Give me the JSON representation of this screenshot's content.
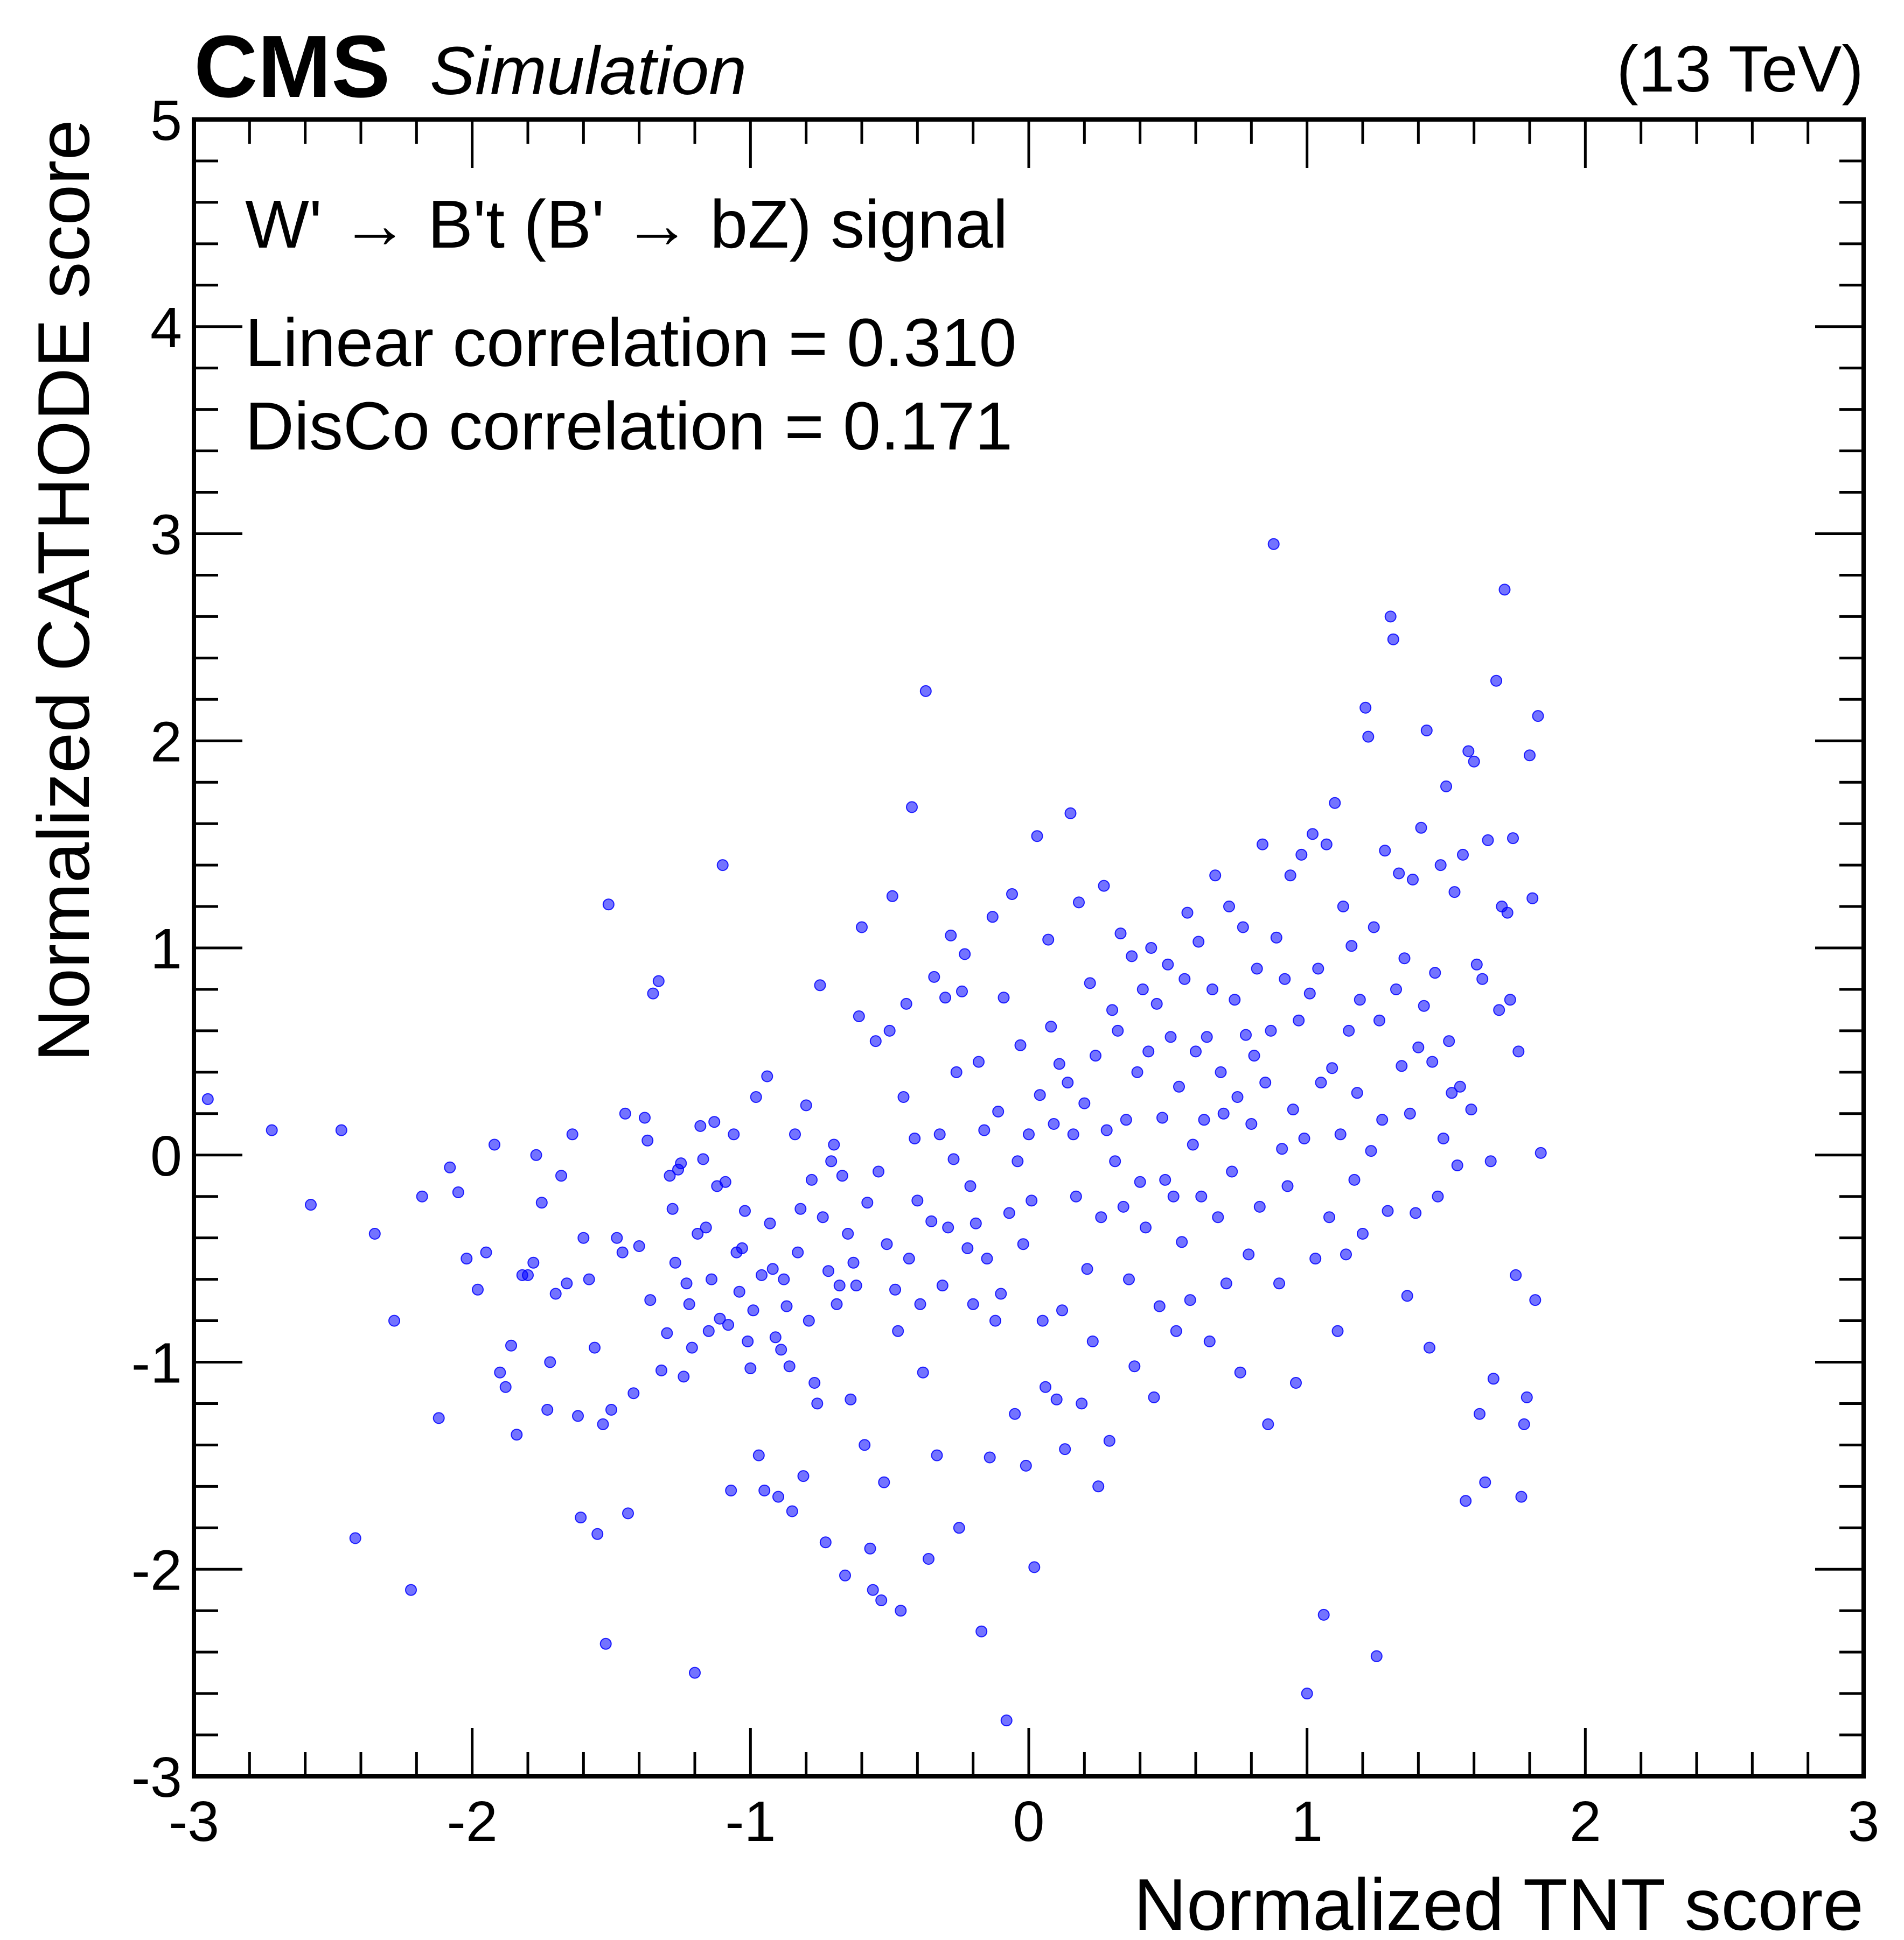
{
  "header": {
    "experiment": "CMS",
    "extra_text": "Simulation",
    "energy_label": "(13 TeV)"
  },
  "annotations": {
    "signal_label": "W' → B't (B' → bZ) signal",
    "linear_correlation": "Linear correlation = 0.310",
    "disco_correlation": "DisCo correlation = 0.171"
  },
  "colors": {
    "marker": "#0000ff",
    "axis": "#000000"
  },
  "chart_data": {
    "type": "scatter",
    "title": "",
    "xlabel": "Normalized TNT score",
    "ylabel": "Normalized CATHODE score",
    "xlim": [
      -3,
      3
    ],
    "ylim": [
      -3,
      5
    ],
    "x_ticks": [
      -3,
      -2,
      -1,
      0,
      1,
      2,
      3
    ],
    "x_tick_labels": [
      "-3",
      "-2",
      "-1",
      "0",
      "1",
      "2",
      "3"
    ],
    "y_ticks": [
      -3,
      -2,
      -1,
      0,
      1,
      2,
      3,
      4,
      5
    ],
    "y_tick_labels": [
      "-3",
      "-2",
      "-1",
      "0",
      "1",
      "2",
      "3",
      "4",
      "5"
    ],
    "grid": false,
    "marker_alpha": 0.55,
    "points": [
      [
        -2.95,
        0.27
      ],
      [
        -2.72,
        0.12
      ],
      [
        -2.58,
        -0.24
      ],
      [
        -2.47,
        0.12
      ],
      [
        -2.42,
        -1.85
      ],
      [
        -2.35,
        -0.38
      ],
      [
        -2.28,
        -0.8
      ],
      [
        -2.22,
        -2.1
      ],
      [
        -2.18,
        -0.2
      ],
      [
        -2.12,
        -1.27
      ],
      [
        -2.08,
        -0.06
      ],
      [
        -2.05,
        -0.18
      ],
      [
        -2.02,
        -0.5
      ],
      [
        -1.98,
        -0.65
      ],
      [
        -1.95,
        -0.47
      ],
      [
        -1.92,
        0.05
      ],
      [
        -1.9,
        -1.05
      ],
      [
        -1.88,
        -1.12
      ],
      [
        -1.86,
        -0.92
      ],
      [
        -1.84,
        -1.35
      ],
      [
        -1.82,
        -0.58
      ],
      [
        -1.8,
        -0.58
      ],
      [
        -1.78,
        -0.52
      ],
      [
        -1.77,
        0.0
      ],
      [
        -1.75,
        -0.23
      ],
      [
        -1.73,
        -1.23
      ],
      [
        -1.72,
        -1.0
      ],
      [
        -1.7,
        -0.67
      ],
      [
        -1.68,
        -0.1
      ],
      [
        -1.66,
        -0.62
      ],
      [
        -1.64,
        0.1
      ],
      [
        -1.62,
        -1.26
      ],
      [
        -1.61,
        -1.75
      ],
      [
        -1.6,
        -0.4
      ],
      [
        -1.58,
        -0.6
      ],
      [
        -1.56,
        -0.93
      ],
      [
        -1.55,
        -1.83
      ],
      [
        -1.53,
        -1.3
      ],
      [
        -1.52,
        -2.36
      ],
      [
        -1.51,
        1.21
      ],
      [
        -1.5,
        -1.23
      ],
      [
        -1.48,
        -0.4
      ],
      [
        -1.46,
        -0.47
      ],
      [
        -1.45,
        0.2
      ],
      [
        -1.44,
        -1.73
      ],
      [
        -1.42,
        -1.15
      ],
      [
        -1.4,
        -0.44
      ],
      [
        -1.38,
        0.18
      ],
      [
        -1.37,
        0.07
      ],
      [
        -1.36,
        -0.7
      ],
      [
        -1.35,
        0.78
      ],
      [
        -1.33,
        0.84
      ],
      [
        -1.32,
        -1.04
      ],
      [
        -1.3,
        -0.86
      ],
      [
        -1.29,
        -0.1
      ],
      [
        -1.28,
        -0.26
      ],
      [
        -1.27,
        -0.52
      ],
      [
        -1.26,
        -0.07
      ],
      [
        -1.25,
        -0.04
      ],
      [
        -1.24,
        -1.07
      ],
      [
        -1.23,
        -0.62
      ],
      [
        -1.22,
        -0.72
      ],
      [
        -1.21,
        -0.93
      ],
      [
        -1.2,
        -2.5
      ],
      [
        -1.19,
        -0.38
      ],
      [
        -1.18,
        0.14
      ],
      [
        -1.17,
        -0.02
      ],
      [
        -1.16,
        -0.35
      ],
      [
        -1.15,
        -0.85
      ],
      [
        -1.14,
        -0.6
      ],
      [
        -1.13,
        0.16
      ],
      [
        -1.12,
        -0.15
      ],
      [
        -1.11,
        -0.79
      ],
      [
        -1.1,
        1.4
      ],
      [
        -1.09,
        -0.13
      ],
      [
        -1.08,
        -0.82
      ],
      [
        -1.07,
        -1.62
      ],
      [
        -1.06,
        0.1
      ],
      [
        -1.05,
        -0.47
      ],
      [
        -1.04,
        -0.66
      ],
      [
        -1.03,
        -0.45
      ],
      [
        -1.02,
        -0.27
      ],
      [
        -1.01,
        -0.9
      ],
      [
        -1.0,
        -1.03
      ],
      [
        -0.99,
        -0.75
      ],
      [
        -0.98,
        0.28
      ],
      [
        -0.97,
        -1.45
      ],
      [
        -0.96,
        -0.58
      ],
      [
        -0.95,
        -1.62
      ],
      [
        -0.94,
        0.38
      ],
      [
        -0.93,
        -0.33
      ],
      [
        -0.92,
        -0.55
      ],
      [
        -0.91,
        -0.88
      ],
      [
        -0.9,
        -1.65
      ],
      [
        -0.89,
        -0.94
      ],
      [
        -0.88,
        -0.6
      ],
      [
        -0.87,
        -0.73
      ],
      [
        -0.86,
        -1.02
      ],
      [
        -0.85,
        -1.72
      ],
      [
        -0.84,
        0.1
      ],
      [
        -0.83,
        -0.47
      ],
      [
        -0.82,
        -0.26
      ],
      [
        -0.81,
        -1.55
      ],
      [
        -0.8,
        0.24
      ],
      [
        -0.79,
        -0.8
      ],
      [
        -0.78,
        -0.12
      ],
      [
        -0.77,
        -1.1
      ],
      [
        -0.76,
        -1.2
      ],
      [
        -0.75,
        0.82
      ],
      [
        -0.74,
        -0.3
      ],
      [
        -0.73,
        -1.87
      ],
      [
        -0.72,
        -0.56
      ],
      [
        -0.71,
        -0.03
      ],
      [
        -0.7,
        0.05
      ],
      [
        -0.69,
        -0.72
      ],
      [
        -0.68,
        -0.63
      ],
      [
        -0.67,
        -0.1
      ],
      [
        -0.66,
        -2.03
      ],
      [
        -0.65,
        -0.38
      ],
      [
        -0.64,
        -1.18
      ],
      [
        -0.63,
        -0.52
      ],
      [
        -0.62,
        -0.63
      ],
      [
        -0.61,
        0.67
      ],
      [
        -0.6,
        1.1
      ],
      [
        -0.59,
        -1.4
      ],
      [
        -0.58,
        -0.23
      ],
      [
        -0.57,
        -1.9
      ],
      [
        -0.56,
        -2.1
      ],
      [
        -0.55,
        0.55
      ],
      [
        -0.54,
        -0.08
      ],
      [
        -0.53,
        -2.15
      ],
      [
        -0.52,
        -1.58
      ],
      [
        -0.51,
        -0.43
      ],
      [
        -0.5,
        0.6
      ],
      [
        -0.49,
        1.25
      ],
      [
        -0.48,
        -0.65
      ],
      [
        -0.47,
        -0.85
      ],
      [
        -0.46,
        -2.2
      ],
      [
        -0.45,
        0.28
      ],
      [
        -0.44,
        0.73
      ],
      [
        -0.43,
        -0.5
      ],
      [
        -0.42,
        1.68
      ],
      [
        -0.41,
        0.08
      ],
      [
        -0.4,
        -0.22
      ],
      [
        -0.39,
        -0.72
      ],
      [
        -0.38,
        -1.05
      ],
      [
        -0.37,
        2.24
      ],
      [
        -0.36,
        -1.95
      ],
      [
        -0.35,
        -0.32
      ],
      [
        -0.34,
        0.86
      ],
      [
        -0.33,
        -1.45
      ],
      [
        -0.32,
        0.1
      ],
      [
        -0.31,
        -0.63
      ],
      [
        -0.3,
        0.76
      ],
      [
        -0.29,
        -0.35
      ],
      [
        -0.28,
        1.06
      ],
      [
        -0.27,
        -0.02
      ],
      [
        -0.26,
        0.4
      ],
      [
        -0.25,
        -1.8
      ],
      [
        -0.24,
        0.79
      ],
      [
        -0.23,
        0.97
      ],
      [
        -0.22,
        -0.45
      ],
      [
        -0.21,
        -0.15
      ],
      [
        -0.2,
        -0.72
      ],
      [
        -0.19,
        -0.33
      ],
      [
        -0.18,
        0.45
      ],
      [
        -0.17,
        -2.3
      ],
      [
        -0.16,
        0.12
      ],
      [
        -0.15,
        -0.5
      ],
      [
        -0.14,
        -1.46
      ],
      [
        -0.13,
        1.15
      ],
      [
        -0.12,
        -0.8
      ],
      [
        -0.11,
        0.21
      ],
      [
        -0.1,
        -0.67
      ],
      [
        -0.09,
        0.76
      ],
      [
        -0.08,
        -2.73
      ],
      [
        -0.07,
        -0.28
      ],
      [
        -0.06,
        1.26
      ],
      [
        -0.05,
        -1.25
      ],
      [
        -0.04,
        -0.03
      ],
      [
        -0.03,
        0.53
      ],
      [
        -0.02,
        -0.43
      ],
      [
        -0.01,
        -1.5
      ],
      [
        0.0,
        0.1
      ],
      [
        0.01,
        -0.22
      ],
      [
        0.02,
        -1.99
      ],
      [
        0.03,
        1.54
      ],
      [
        0.04,
        0.29
      ],
      [
        0.05,
        -0.8
      ],
      [
        0.06,
        -1.12
      ],
      [
        0.07,
        1.04
      ],
      [
        0.08,
        0.62
      ],
      [
        0.09,
        0.15
      ],
      [
        0.1,
        -1.18
      ],
      [
        0.11,
        0.44
      ],
      [
        0.12,
        -0.75
      ],
      [
        0.13,
        -1.42
      ],
      [
        0.14,
        0.35
      ],
      [
        0.15,
        1.65
      ],
      [
        0.16,
        0.1
      ],
      [
        0.17,
        -0.2
      ],
      [
        0.18,
        1.22
      ],
      [
        0.19,
        -1.2
      ],
      [
        0.2,
        0.25
      ],
      [
        0.21,
        -0.55
      ],
      [
        0.22,
        0.83
      ],
      [
        0.23,
        -0.9
      ],
      [
        0.24,
        0.48
      ],
      [
        0.25,
        -1.6
      ],
      [
        0.26,
        -0.3
      ],
      [
        0.27,
        1.3
      ],
      [
        0.28,
        0.12
      ],
      [
        0.29,
        -1.38
      ],
      [
        0.3,
        0.7
      ],
      [
        0.31,
        -0.03
      ],
      [
        0.32,
        0.6
      ],
      [
        0.33,
        1.07
      ],
      [
        0.34,
        -0.25
      ],
      [
        0.35,
        0.17
      ],
      [
        0.36,
        -0.6
      ],
      [
        0.37,
        0.96
      ],
      [
        0.38,
        -1.02
      ],
      [
        0.39,
        0.4
      ],
      [
        0.4,
        -0.13
      ],
      [
        0.41,
        0.8
      ],
      [
        0.42,
        -0.35
      ],
      [
        0.43,
        0.5
      ],
      [
        0.44,
        1.0
      ],
      [
        0.45,
        -1.17
      ],
      [
        0.46,
        0.73
      ],
      [
        0.47,
        -0.73
      ],
      [
        0.48,
        0.18
      ],
      [
        0.49,
        -0.12
      ],
      [
        0.5,
        0.92
      ],
      [
        0.51,
        0.57
      ],
      [
        0.52,
        -0.2
      ],
      [
        0.53,
        -0.85
      ],
      [
        0.54,
        0.33
      ],
      [
        0.55,
        -0.42
      ],
      [
        0.56,
        0.85
      ],
      [
        0.57,
        1.17
      ],
      [
        0.58,
        -0.7
      ],
      [
        0.59,
        0.05
      ],
      [
        0.6,
        0.5
      ],
      [
        0.61,
        1.03
      ],
      [
        0.62,
        -0.2
      ],
      [
        0.63,
        0.17
      ],
      [
        0.64,
        0.57
      ],
      [
        0.65,
        -0.9
      ],
      [
        0.66,
        0.8
      ],
      [
        0.67,
        1.35
      ],
      [
        0.68,
        -0.3
      ],
      [
        0.69,
        0.4
      ],
      [
        0.7,
        0.2
      ],
      [
        0.71,
        -0.62
      ],
      [
        0.72,
        1.2
      ],
      [
        0.73,
        -0.08
      ],
      [
        0.74,
        0.75
      ],
      [
        0.75,
        0.28
      ],
      [
        0.76,
        -1.05
      ],
      [
        0.77,
        1.1
      ],
      [
        0.78,
        0.58
      ],
      [
        0.79,
        -0.48
      ],
      [
        0.8,
        0.15
      ],
      [
        0.81,
        0.48
      ],
      [
        0.82,
        0.9
      ],
      [
        0.83,
        -0.25
      ],
      [
        0.84,
        1.5
      ],
      [
        0.85,
        0.35
      ],
      [
        0.86,
        -1.3
      ],
      [
        0.87,
        0.6
      ],
      [
        0.88,
        2.95
      ],
      [
        0.89,
        1.05
      ],
      [
        0.9,
        -0.62
      ],
      [
        0.91,
        0.03
      ],
      [
        0.92,
        0.85
      ],
      [
        0.93,
        -0.15
      ],
      [
        0.94,
        1.35
      ],
      [
        0.95,
        0.22
      ],
      [
        0.96,
        -1.1
      ],
      [
        0.97,
        0.65
      ],
      [
        0.98,
        1.45
      ],
      [
        0.99,
        0.08
      ],
      [
        1.0,
        -2.6
      ],
      [
        1.01,
        0.78
      ],
      [
        1.02,
        1.55
      ],
      [
        1.03,
        -0.5
      ],
      [
        1.04,
        0.9
      ],
      [
        1.05,
        0.35
      ],
      [
        1.06,
        -2.22
      ],
      [
        1.07,
        1.5
      ],
      [
        1.08,
        -0.3
      ],
      [
        1.09,
        0.42
      ],
      [
        1.1,
        1.7
      ],
      [
        1.11,
        -0.85
      ],
      [
        1.12,
        0.1
      ],
      [
        1.13,
        1.2
      ],
      [
        1.14,
        -0.48
      ],
      [
        1.15,
        0.6
      ],
      [
        1.16,
        1.01
      ],
      [
        1.17,
        -0.12
      ],
      [
        1.18,
        0.3
      ],
      [
        1.19,
        0.75
      ],
      [
        1.2,
        -0.38
      ],
      [
        1.21,
        2.16
      ],
      [
        1.22,
        2.02
      ],
      [
        1.23,
        0.02
      ],
      [
        1.24,
        1.1
      ],
      [
        1.25,
        -2.42
      ],
      [
        1.26,
        0.65
      ],
      [
        1.27,
        0.17
      ],
      [
        1.28,
        1.47
      ],
      [
        1.29,
        -0.27
      ],
      [
        1.3,
        2.6
      ],
      [
        1.31,
        2.49
      ],
      [
        1.32,
        0.8
      ],
      [
        1.33,
        1.36
      ],
      [
        1.34,
        0.43
      ],
      [
        1.35,
        0.95
      ],
      [
        1.36,
        -0.68
      ],
      [
        1.37,
        0.2
      ],
      [
        1.38,
        1.33
      ],
      [
        1.39,
        -0.28
      ],
      [
        1.4,
        0.52
      ],
      [
        1.41,
        1.58
      ],
      [
        1.42,
        0.72
      ],
      [
        1.43,
        2.05
      ],
      [
        1.44,
        -0.93
      ],
      [
        1.45,
        0.45
      ],
      [
        1.46,
        0.88
      ],
      [
        1.47,
        -0.2
      ],
      [
        1.48,
        1.4
      ],
      [
        1.49,
        0.08
      ],
      [
        1.5,
        1.78
      ],
      [
        1.51,
        0.55
      ],
      [
        1.52,
        0.3
      ],
      [
        1.53,
        1.27
      ],
      [
        1.54,
        -0.05
      ],
      [
        1.55,
        0.33
      ],
      [
        1.56,
        1.45
      ],
      [
        1.57,
        -1.67
      ],
      [
        1.58,
        1.95
      ],
      [
        1.59,
        0.22
      ],
      [
        1.6,
        1.9
      ],
      [
        1.61,
        0.92
      ],
      [
        1.62,
        -1.25
      ],
      [
        1.63,
        0.85
      ],
      [
        1.64,
        -1.58
      ],
      [
        1.65,
        1.52
      ],
      [
        1.66,
        -0.03
      ],
      [
        1.67,
        -1.08
      ],
      [
        1.68,
        2.29
      ],
      [
        1.69,
        0.7
      ],
      [
        1.7,
        1.2
      ],
      [
        1.71,
        2.73
      ],
      [
        1.72,
        1.17
      ],
      [
        1.73,
        0.75
      ],
      [
        1.74,
        1.53
      ],
      [
        1.75,
        -0.58
      ],
      [
        1.76,
        0.5
      ],
      [
        1.77,
        -1.65
      ],
      [
        1.78,
        -1.3
      ],
      [
        1.79,
        -1.17
      ],
      [
        1.8,
        1.93
      ],
      [
        1.81,
        1.24
      ],
      [
        1.82,
        -0.7
      ],
      [
        1.83,
        2.12
      ],
      [
        1.84,
        0.01
      ]
    ]
  }
}
